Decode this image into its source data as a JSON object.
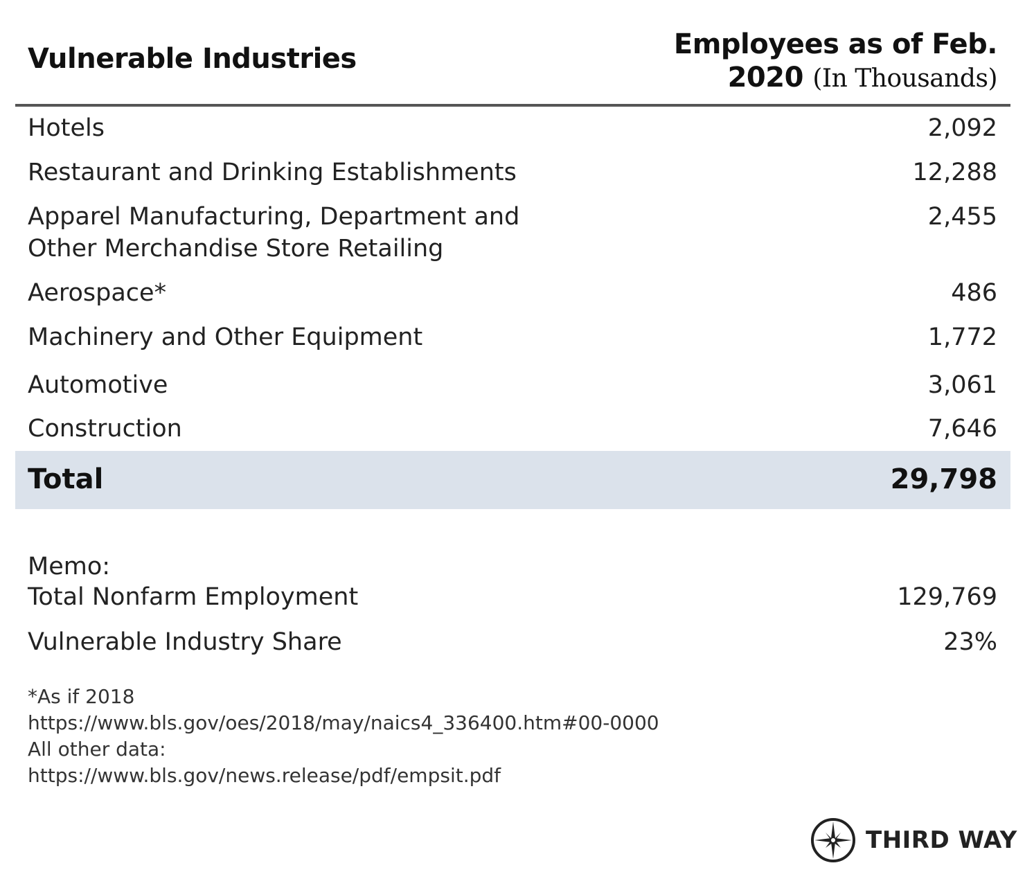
{
  "header": {
    "left": "Vulnerable Industries",
    "right_bold_1": "Employees as of Feb.",
    "right_bold_2": "2020",
    "right_paren": "(In Thousands)"
  },
  "rows": [
    {
      "label": "Hotels",
      "value": "2,092"
    },
    {
      "label": "Restaurant and Drinking Establishments",
      "value": "12,288"
    },
    {
      "label": "Apparel Manufacturing, Department and\nOther Merchandise Store Retailing",
      "value": "2,455"
    },
    {
      "label": "Aerospace*",
      "value": "486"
    },
    {
      "label": "Machinery and Other Equipment",
      "value": "1,772"
    },
    {
      "label": "Automotive",
      "value": "3,061"
    },
    {
      "label": "Construction",
      "value": "7,646"
    }
  ],
  "total": {
    "label": "Total",
    "value": "29,798"
  },
  "memo": {
    "title": "Memo:",
    "rows": [
      {
        "label": "Total Nonfarm Employment",
        "value": "129,769"
      },
      {
        "label": "Vulnerable Industry Share",
        "value": "23%"
      }
    ]
  },
  "footnotes": [
    "*As if 2018",
    "https://www.bls.gov/oes/2018/may/naics4_336400.htm#00-0000",
    "All other data:",
    "https://www.bls.gov/news.release/pdf/empsit.pdf"
  ],
  "logo": {
    "text": "THIRD WAY",
    "icon": "compass-star-icon"
  },
  "colors": {
    "total_band": "#dbe2eb",
    "rule": "#555555"
  }
}
